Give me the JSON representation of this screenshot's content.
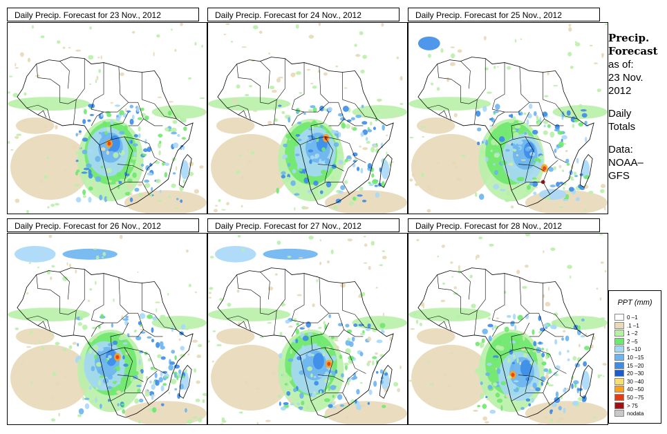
{
  "panels": [
    {
      "title": "Daily Precip. Forecast for  23 Nov., 2012",
      "variant": 0
    },
    {
      "title": "Daily Precip. Forecast for  24 Nov., 2012",
      "variant": 1
    },
    {
      "title": "Daily Precip. Forecast for  25 Nov., 2012",
      "variant": 2
    },
    {
      "title": "Daily Precip. Forecast for  26 Nov., 2012",
      "variant": 3
    },
    {
      "title": "Daily Precip. Forecast for  27 Nov., 2012",
      "variant": 4
    },
    {
      "title": "Daily Precip. Forecast for  28 Nov., 2012",
      "variant": 5
    }
  ],
  "side": {
    "heading1": "Precip.",
    "heading2": "Forecast",
    "asof": "as of:",
    "date1": "23 Nov.",
    "date2": "2012",
    "daily1": "Daily",
    "daily2": "Totals",
    "data1": "Data:",
    "data2": "NOAA–",
    "data3": "GFS"
  },
  "legend": {
    "title": "PPT (mm)",
    "items": [
      {
        "label": "0 –1",
        "color": "#ffffff"
      },
      {
        "label": ".1 –1",
        "color": "#e8d9b8"
      },
      {
        "label": "1 –2",
        "color": "#b8f0a8"
      },
      {
        "label": "2 –5",
        "color": "#6ee86e"
      },
      {
        "label": "5 –10",
        "color": "#a8d8f8"
      },
      {
        "label": "10 –15",
        "color": "#6cb4f0"
      },
      {
        "label": "15 –20",
        "color": "#3c8ce8"
      },
      {
        "label": "20 –30",
        "color": "#1c5ccc"
      },
      {
        "label": "30 –40",
        "color": "#f8e070"
      },
      {
        "label": "40 –50",
        "color": "#f8a020"
      },
      {
        "label": "50 –75",
        "color": "#e83c10"
      },
      {
        "label": "> 75",
        "color": "#a01010"
      },
      {
        "label": "nodata",
        "color": "#c8c8c8"
      }
    ]
  }
}
